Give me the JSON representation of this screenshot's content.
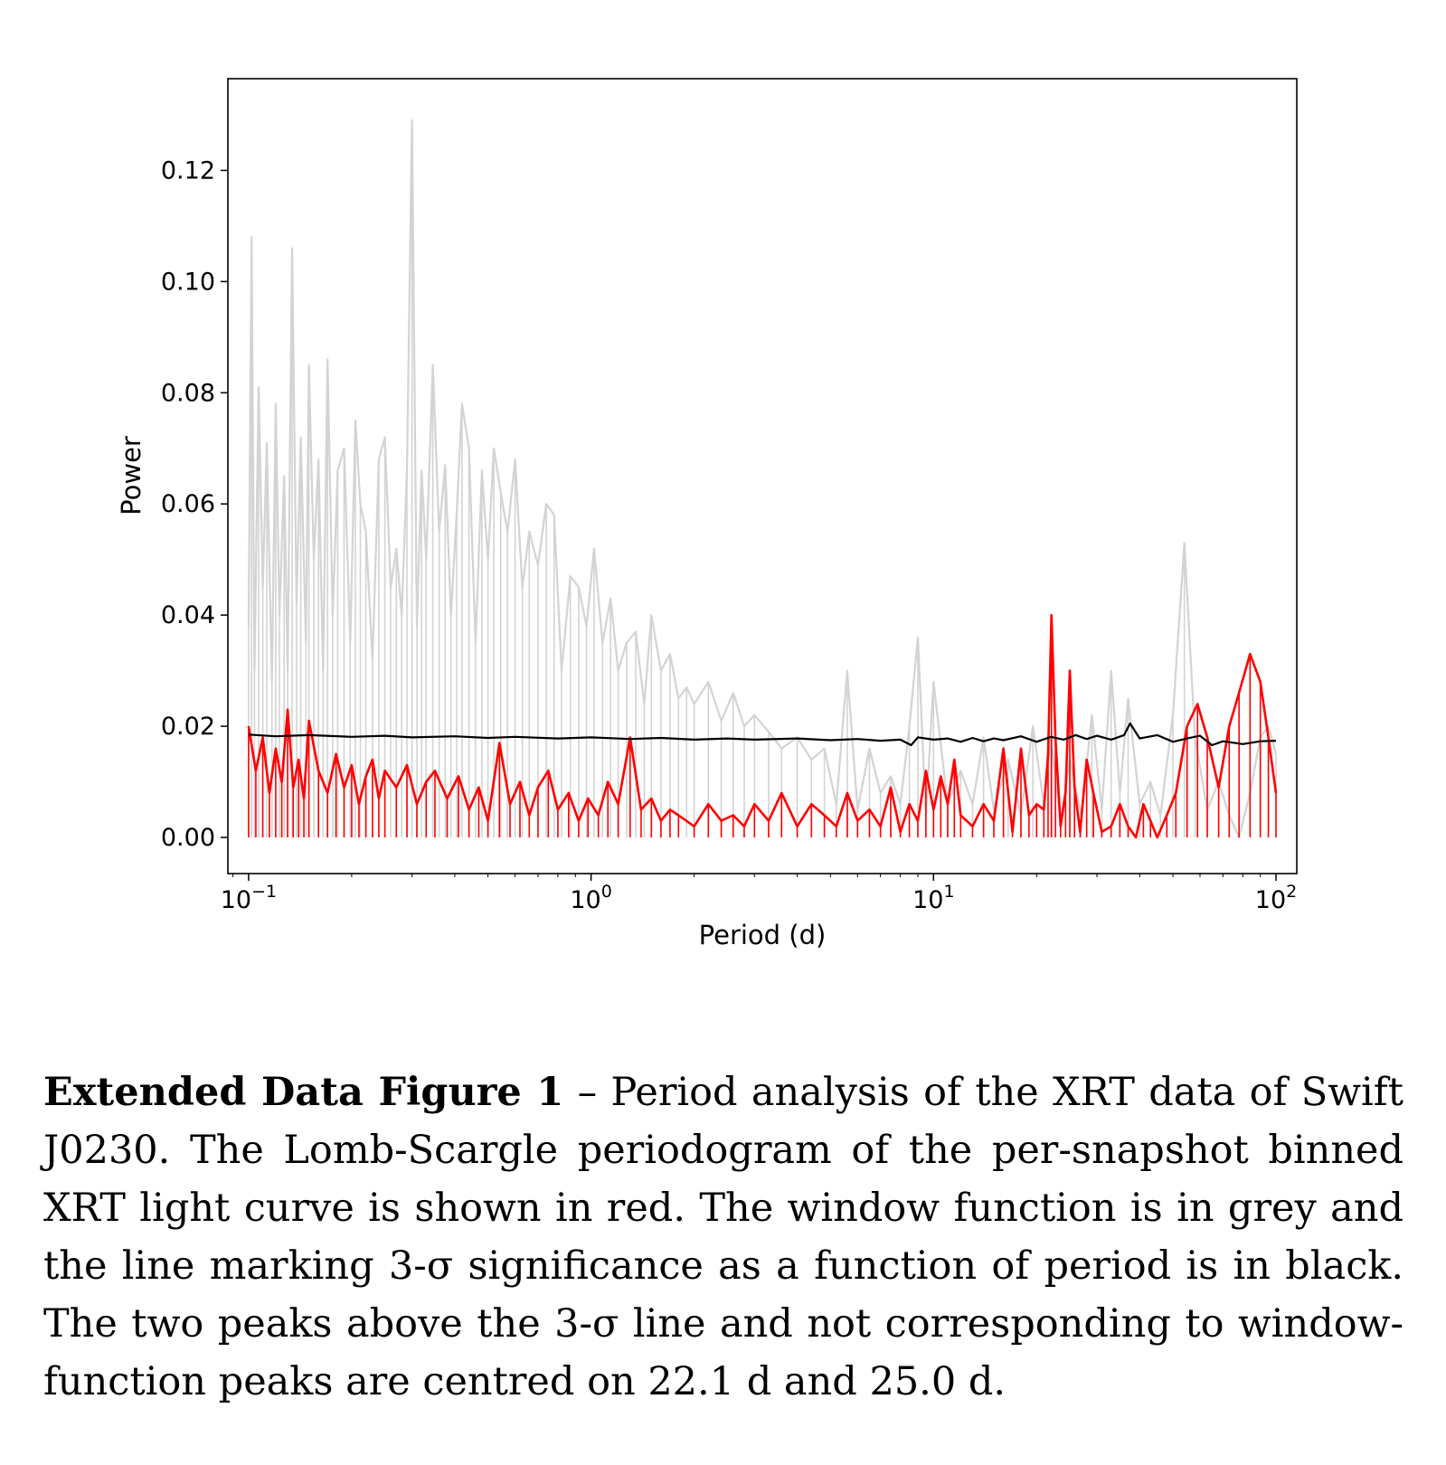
{
  "chart_data": {
    "type": "line",
    "xlabel": "Period (d)",
    "ylabel": "Power",
    "xscale": "log",
    "xlim": [
      0.087,
      115
    ],
    "ylim": [
      -0.0065,
      0.1365
    ],
    "xticks": [
      {
        "value": 0.1,
        "base": "10",
        "exp": "−1"
      },
      {
        "value": 1,
        "base": "10",
        "exp": "0"
      },
      {
        "value": 10,
        "base": "10",
        "exp": "1"
      },
      {
        "value": 100,
        "base": "10",
        "exp": "2"
      }
    ],
    "yticks": [
      {
        "value": 0.0,
        "label": "0.00"
      },
      {
        "value": 0.02,
        "label": "0.02"
      },
      {
        "value": 0.04,
        "label": "0.04"
      },
      {
        "value": 0.06,
        "label": "0.06"
      },
      {
        "value": 0.08,
        "label": "0.08"
      },
      {
        "value": 0.1,
        "label": "0.10"
      },
      {
        "value": 0.12,
        "label": "0.12"
      }
    ],
    "series": [
      {
        "role": "window function",
        "color": "#d3d3d3",
        "x": [
          0.1,
          0.102,
          0.104,
          0.107,
          0.11,
          0.113,
          0.117,
          0.12,
          0.123,
          0.127,
          0.13,
          0.134,
          0.138,
          0.142,
          0.147,
          0.15,
          0.155,
          0.16,
          0.165,
          0.17,
          0.176,
          0.182,
          0.19,
          0.198,
          0.205,
          0.212,
          0.22,
          0.23,
          0.24,
          0.25,
          0.26,
          0.27,
          0.28,
          0.29,
          0.3,
          0.31,
          0.32,
          0.33,
          0.345,
          0.36,
          0.375,
          0.39,
          0.405,
          0.42,
          0.44,
          0.46,
          0.48,
          0.5,
          0.52,
          0.545,
          0.57,
          0.6,
          0.63,
          0.66,
          0.7,
          0.74,
          0.78,
          0.82,
          0.87,
          0.92,
          0.97,
          1.02,
          1.08,
          1.14,
          1.2,
          1.27,
          1.35,
          1.43,
          1.5,
          1.6,
          1.7,
          1.8,
          1.9,
          2.0,
          2.2,
          2.4,
          2.6,
          2.8,
          3.0,
          3.3,
          3.6,
          4.0,
          4.4,
          4.8,
          5.2,
          5.6,
          6.0,
          6.5,
          7.0,
          7.5,
          8.0,
          8.5,
          9.0,
          9.5,
          10.0,
          11.0,
          12.0,
          13.0,
          14.0,
          15.0,
          16.5,
          18.0,
          19.5,
          21.0,
          22.0,
          23.5,
          25.0,
          27.0,
          29.0,
          31.0,
          33.0,
          35.0,
          37.0,
          40.0,
          43.0,
          46.0,
          50.0,
          54.0,
          58.0,
          63.0,
          68.0,
          73.0,
          78.0,
          84.0,
          90.0,
          95.0,
          100.0
        ],
        "y": [
          0.038,
          0.108,
          0.03,
          0.081,
          0.045,
          0.071,
          0.028,
          0.078,
          0.04,
          0.065,
          0.03,
          0.106,
          0.042,
          0.072,
          0.035,
          0.085,
          0.05,
          0.068,
          0.03,
          0.086,
          0.04,
          0.066,
          0.07,
          0.035,
          0.075,
          0.06,
          0.055,
          0.032,
          0.068,
          0.072,
          0.045,
          0.052,
          0.04,
          0.066,
          0.129,
          0.038,
          0.066,
          0.05,
          0.085,
          0.055,
          0.067,
          0.04,
          0.058,
          0.078,
          0.07,
          0.035,
          0.066,
          0.05,
          0.07,
          0.062,
          0.055,
          0.068,
          0.045,
          0.055,
          0.049,
          0.06,
          0.058,
          0.03,
          0.047,
          0.045,
          0.038,
          0.052,
          0.035,
          0.043,
          0.03,
          0.035,
          0.037,
          0.024,
          0.04,
          0.03,
          0.033,
          0.025,
          0.027,
          0.024,
          0.028,
          0.021,
          0.026,
          0.02,
          0.022,
          0.019,
          0.016,
          0.018,
          0.014,
          0.016,
          0.006,
          0.03,
          0.005,
          0.016,
          0.008,
          0.011,
          0.006,
          0.02,
          0.036,
          0.004,
          0.028,
          0.006,
          0.012,
          0.006,
          0.018,
          0.005,
          0.014,
          0.004,
          0.02,
          0.006,
          0.018,
          0.003,
          0.014,
          0.004,
          0.022,
          0.005,
          0.03,
          0.008,
          0.025,
          0.006,
          0.01,
          0.004,
          0.022,
          0.053,
          0.018,
          0.005,
          0.01,
          0.004,
          0.0,
          0.008,
          0.018,
          0.02,
          0.015
        ]
      },
      {
        "role": "periodogram",
        "color": "#ff0000",
        "x": [
          0.1,
          0.105,
          0.11,
          0.115,
          0.12,
          0.125,
          0.13,
          0.135,
          0.14,
          0.145,
          0.15,
          0.16,
          0.17,
          0.18,
          0.19,
          0.2,
          0.21,
          0.22,
          0.23,
          0.24,
          0.25,
          0.27,
          0.29,
          0.31,
          0.33,
          0.35,
          0.38,
          0.41,
          0.44,
          0.47,
          0.5,
          0.54,
          0.58,
          0.62,
          0.66,
          0.7,
          0.75,
          0.8,
          0.86,
          0.92,
          0.98,
          1.05,
          1.12,
          1.2,
          1.3,
          1.4,
          1.5,
          1.6,
          1.7,
          1.8,
          2.0,
          2.2,
          2.4,
          2.6,
          2.8,
          3.0,
          3.3,
          3.6,
          4.0,
          4.4,
          4.8,
          5.2,
          5.6,
          6.0,
          6.5,
          7.0,
          7.5,
          8.0,
          8.5,
          9.0,
          9.5,
          10.0,
          10.5,
          11.0,
          11.5,
          12.0,
          13.0,
          14.0,
          15.0,
          16.0,
          17.0,
          18.0,
          19.0,
          20.0,
          21.0,
          21.6,
          22.1,
          22.7,
          23.5,
          24.3,
          25.0,
          25.8,
          26.8,
          28.0,
          29.3,
          31.0,
          33.0,
          35.0,
          37.0,
          39.0,
          41.0,
          43.0,
          45.0,
          48.0,
          51.0,
          55.0,
          59.0,
          63.0,
          68.0,
          73.0,
          78.0,
          84.0,
          90.0,
          95.0,
          100.0
        ],
        "y": [
          0.02,
          0.012,
          0.018,
          0.008,
          0.016,
          0.01,
          0.023,
          0.009,
          0.014,
          0.007,
          0.021,
          0.012,
          0.008,
          0.015,
          0.009,
          0.013,
          0.006,
          0.011,
          0.014,
          0.007,
          0.012,
          0.009,
          0.013,
          0.006,
          0.01,
          0.012,
          0.007,
          0.011,
          0.005,
          0.009,
          0.003,
          0.017,
          0.006,
          0.01,
          0.004,
          0.009,
          0.012,
          0.005,
          0.008,
          0.003,
          0.007,
          0.004,
          0.01,
          0.006,
          0.018,
          0.005,
          0.007,
          0.003,
          0.005,
          0.004,
          0.002,
          0.006,
          0.003,
          0.004,
          0.002,
          0.006,
          0.003,
          0.008,
          0.002,
          0.006,
          0.004,
          0.002,
          0.008,
          0.003,
          0.005,
          0.002,
          0.009,
          0.001,
          0.006,
          0.003,
          0.012,
          0.005,
          0.011,
          0.006,
          0.014,
          0.004,
          0.002,
          0.006,
          0.003,
          0.016,
          0.001,
          0.016,
          0.004,
          0.006,
          0.005,
          0.015,
          0.04,
          0.018,
          0.002,
          0.008,
          0.03,
          0.009,
          0.001,
          0.014,
          0.008,
          0.001,
          0.002,
          0.006,
          0.002,
          0.0,
          0.006,
          0.003,
          0.0,
          0.004,
          0.008,
          0.02,
          0.024,
          0.018,
          0.009,
          0.02,
          0.026,
          0.033,
          0.028,
          0.018,
          0.008
        ]
      },
      {
        "role": "3-sigma significance",
        "color": "#000000",
        "x": [
          0.1,
          0.12,
          0.15,
          0.2,
          0.25,
          0.3,
          0.4,
          0.5,
          0.6,
          0.8,
          1.0,
          1.3,
          1.6,
          2.0,
          2.5,
          3.0,
          4.0,
          5.0,
          6.0,
          7.0,
          8.0,
          8.6,
          9.0,
          10.0,
          11.0,
          12.0,
          13.0,
          14.0,
          15.0,
          16.0,
          18.0,
          20.0,
          22.0,
          24.0,
          26.0,
          28.0,
          30.0,
          33.0,
          36.0,
          37.5,
          40.0,
          45.0,
          50.0,
          55.0,
          60.0,
          65.0,
          70.0,
          80.0,
          90.0,
          100.0
        ],
        "y": [
          0.0185,
          0.0182,
          0.0184,
          0.0181,
          0.0183,
          0.018,
          0.0182,
          0.0179,
          0.0181,
          0.0178,
          0.018,
          0.0177,
          0.0179,
          0.0176,
          0.0178,
          0.0176,
          0.0178,
          0.0175,
          0.0177,
          0.0174,
          0.0176,
          0.0166,
          0.018,
          0.0176,
          0.0178,
          0.0172,
          0.0179,
          0.0173,
          0.0178,
          0.0175,
          0.0182,
          0.0172,
          0.0181,
          0.0176,
          0.0184,
          0.0177,
          0.0183,
          0.0176,
          0.0184,
          0.0205,
          0.0178,
          0.0184,
          0.0172,
          0.0178,
          0.0183,
          0.0166,
          0.0173,
          0.0168,
          0.0173,
          0.0174
        ]
      }
    ]
  },
  "caption": {
    "label": "Extended Data Figure 1",
    "text": " – Period analysis of the XRT data of Swift J0230.  The Lomb-Scargle periodogram of the per-snapshot binned XRT light curve is shown in red. The window function is in grey and the line marking 3-σ significance as a function of period is in black. The two peaks above the 3-σ line and not corresponding to window-function peaks are centred on 22.1 d and 25.0 d."
  }
}
